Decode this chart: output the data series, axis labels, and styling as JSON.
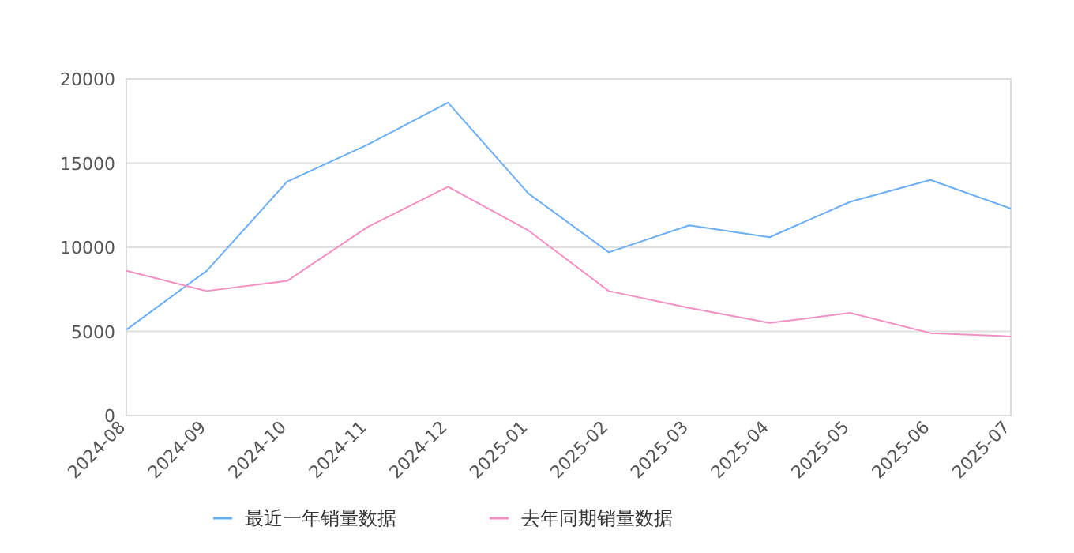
{
  "chart_data": {
    "type": "line",
    "categories": [
      "2024-08",
      "2024-09",
      "2024-10",
      "2024-11",
      "2024-12",
      "2025-01",
      "2025-02",
      "2025-03",
      "2025-04",
      "2025-05",
      "2025-06",
      "2025-07"
    ],
    "series": [
      {
        "name": "最近一年销量数据",
        "color": "#6aaef5",
        "values": [
          5100,
          8600,
          13900,
          16100,
          18600,
          13200,
          9700,
          11300,
          10600,
          12700,
          14000,
          12300
        ]
      },
      {
        "name": "去年同期销量数据",
        "color": "#f290c3",
        "values": [
          8600,
          7400,
          8000,
          11200,
          13600,
          11000,
          7400,
          6400,
          5500,
          6100,
          4900,
          4700
        ]
      }
    ],
    "ylim": [
      0,
      20000
    ],
    "yticks": [
      0,
      5000,
      10000,
      15000,
      20000
    ],
    "grid": "y",
    "legend": "bottom",
    "marker": "none"
  }
}
